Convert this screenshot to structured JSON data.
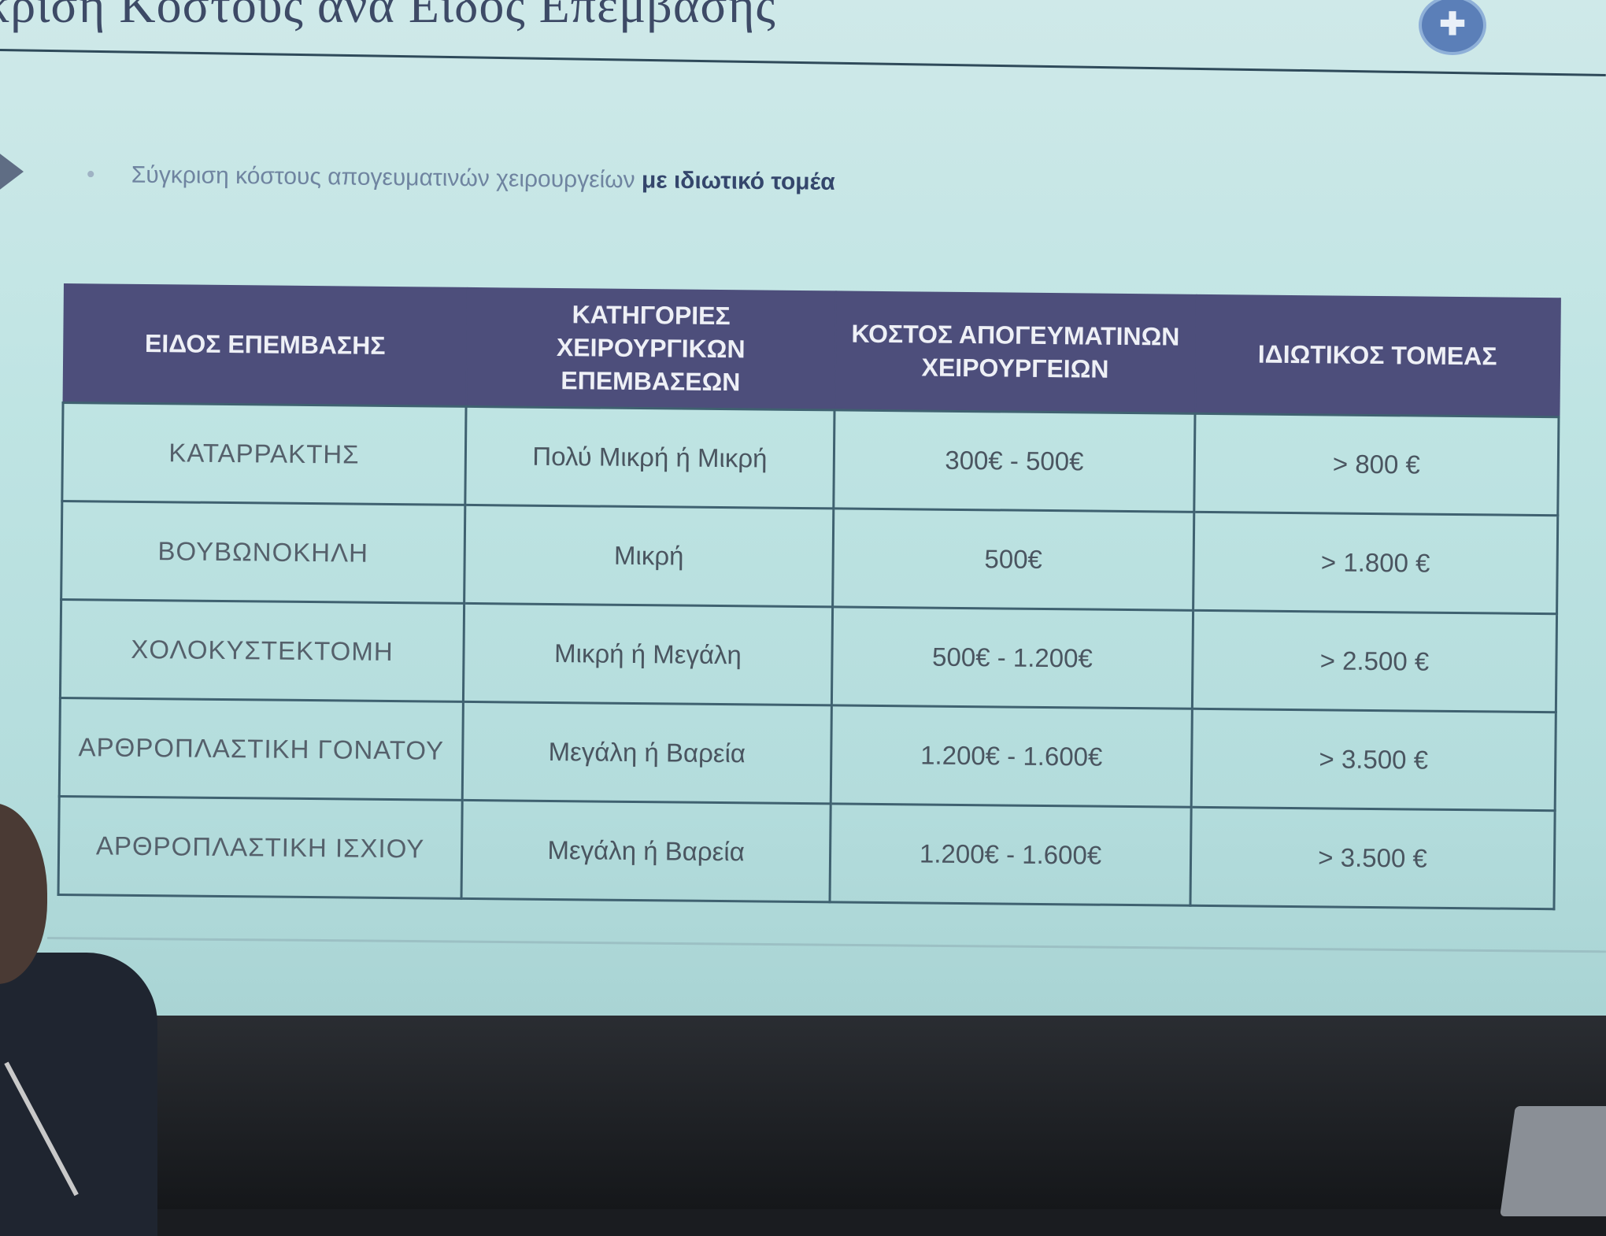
{
  "slide": {
    "title": "κριση Κοστους ανα Ειδος Επεμβασης",
    "bullet_regular": "Σύγκριση κόστους απογευματινών χειρουργείων",
    "bullet_bold": "με ιδιωτικό τομέα",
    "logo_glyph": "✚"
  },
  "table": {
    "headers": [
      "ΕΙΔΟΣ ΕΠΕΜΒΑΣΗΣ",
      "ΚΑΤΗΓΟΡΙΕΣ ΧΕΙΡΟΥΡΓΙΚΩΝ ΕΠΕΜΒΑΣΕΩΝ",
      "ΚΟΣΤΟΣ ΑΠΟΓΕΥΜΑΤΙΝΩΝ ΧΕΙΡΟΥΡΓΕΙΩΝ",
      "ΙΔΙΩΤΙΚΟΣ ΤΟΜΕΑΣ"
    ],
    "rows": [
      [
        "ΚΑΤΑΡΡΑΚΤΗΣ",
        "Πολύ Μικρή ή Μικρή",
        "300€ - 500€",
        "> 800 €"
      ],
      [
        "ΒΟΥΒΩΝΟΚΗΛΗ",
        "Μικρή",
        "500€",
        "> 1.800 €"
      ],
      [
        "ΧΟΛΟΚΥΣΤΕΚΤΟΜΗ",
        "Μικρή ή Μεγάλη",
        "500€ - 1.200€",
        "> 2.500 €"
      ],
      [
        "ΑΡΘΡΟΠΛΑΣΤΙΚΗ ΓΟΝΑΤΟΥ",
        "Μεγάλη ή Βαρεία",
        "1.200€ - 1.600€",
        "> 3.500 €"
      ],
      [
        "ΑΡΘΡΟΠΛΑΣΤΙΚΗ ΙΣΧΙΟΥ",
        "Μεγάλη ή Βαρεία",
        "1.200€ - 1.600€",
        "> 3.500 €"
      ]
    ]
  }
}
